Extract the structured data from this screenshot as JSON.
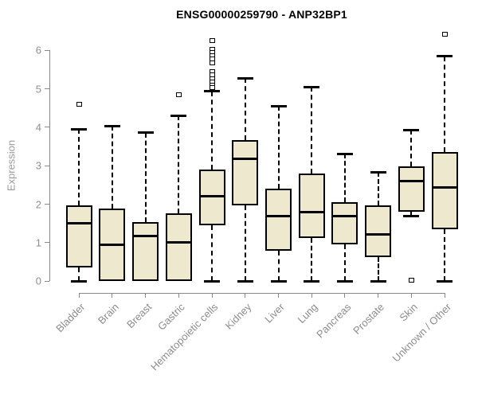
{
  "figure": {
    "title": "ENSG00000259790 - ANP32BP1",
    "ylabel": "Expression"
  },
  "chart_data": {
    "type": "box",
    "title": "ENSG00000259790 - ANP32BP1",
    "xlabel": "",
    "ylabel": "Expression",
    "ylim": [
      0,
      6
    ],
    "yticks": [
      0,
      1,
      2,
      3,
      4,
      5,
      6
    ],
    "grid": false,
    "legend": "none",
    "categories": [
      "Bladder",
      "Brain",
      "Breast",
      "Gastric",
      "Hematopoietic cells",
      "Kidney",
      "Liver",
      "Lung",
      "Pancreas",
      "Prostate",
      "Skin",
      "Unknown / Other"
    ],
    "series": [
      {
        "label": "Bladder",
        "whisker_low": 0,
        "q1": 0.35,
        "median": 1.5,
        "q3": 1.97,
        "whisker_high": 3.95,
        "outliers": [
          4.6
        ]
      },
      {
        "label": "Brain",
        "whisker_low": 0,
        "q1": 0.0,
        "median": 0.94,
        "q3": 1.88,
        "whisker_high": 4.04,
        "outliers": []
      },
      {
        "label": "Breast",
        "whisker_low": 0,
        "q1": 0.0,
        "median": 1.17,
        "q3": 1.53,
        "whisker_high": 3.86,
        "outliers": []
      },
      {
        "label": "Gastric",
        "whisker_low": 0,
        "q1": 0.0,
        "median": 1.01,
        "q3": 1.76,
        "whisker_high": 4.3,
        "outliers": [
          4.85
        ]
      },
      {
        "label": "Hematopoietic cells",
        "whisker_low": 0,
        "q1": 1.46,
        "median": 2.21,
        "q3": 2.91,
        "whisker_high": 4.94,
        "outliers": [
          6.26,
          6.02,
          5.94,
          5.86,
          5.77,
          5.68,
          5.45,
          5.36,
          5.27,
          5.18,
          5.1,
          5.03
        ]
      },
      {
        "label": "Kidney",
        "whisker_low": 0,
        "q1": 1.97,
        "median": 3.19,
        "q3": 3.67,
        "whisker_high": 5.28,
        "outliers": []
      },
      {
        "label": "Liver",
        "whisker_low": 0,
        "q1": 0.79,
        "median": 1.7,
        "q3": 2.41,
        "whisker_high": 4.55,
        "outliers": []
      },
      {
        "label": "Lung",
        "whisker_low": 0,
        "q1": 1.12,
        "median": 1.79,
        "q3": 2.79,
        "whisker_high": 5.05,
        "outliers": []
      },
      {
        "label": "Pancreas",
        "whisker_low": 0,
        "q1": 0.95,
        "median": 1.69,
        "q3": 2.05,
        "whisker_high": 3.31,
        "outliers": []
      },
      {
        "label": "Prostate",
        "whisker_low": 0,
        "q1": 0.62,
        "median": 1.21,
        "q3": 1.98,
        "whisker_high": 2.84,
        "outliers": []
      },
      {
        "label": "Skin",
        "whisker_low": 1.7,
        "q1": 1.8,
        "median": 2.6,
        "q3": 2.98,
        "whisker_high": 3.93,
        "outliers": [
          0.03
        ]
      },
      {
        "label": "Unknown / Other",
        "whisker_low": 0,
        "q1": 1.36,
        "median": 2.43,
        "q3": 3.36,
        "whisker_high": 5.85,
        "outliers": [
          6.43
        ]
      }
    ],
    "colors": {
      "box_fill": "#EDE8CE",
      "box_border": "#000000",
      "median": "#000000",
      "whisker": "#000000",
      "axis": "#888888",
      "tick_label": "#8c8c8c",
      "title": "#000000"
    }
  }
}
